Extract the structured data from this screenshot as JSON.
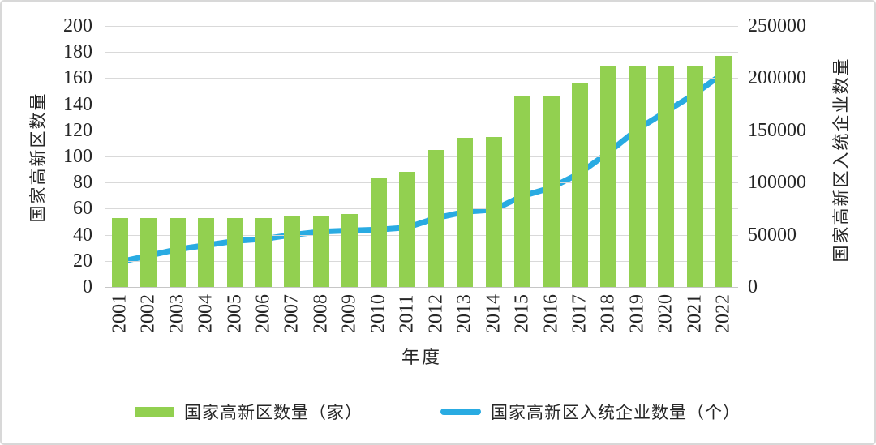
{
  "chart_data": {
    "type": "combo-bar-line",
    "categories": [
      "2001",
      "2002",
      "2003",
      "2004",
      "2005",
      "2006",
      "2007",
      "2008",
      "2009",
      "2010",
      "2011",
      "2012",
      "2013",
      "2014",
      "2015",
      "2016",
      "2017",
      "2018",
      "2019",
      "2020",
      "2021",
      "2022"
    ],
    "series": [
      {
        "name": "国家高新区数量（家）",
        "type": "bar",
        "axis": "left",
        "color": "#92d050",
        "values": [
          53,
          53,
          53,
          53,
          53,
          53,
          54,
          54,
          56,
          83,
          88,
          105,
          114,
          115,
          146,
          146,
          156,
          169,
          169,
          169,
          169,
          177
        ]
      },
      {
        "name": "国家高新区入统企业数量（个）",
        "type": "line",
        "axis": "right",
        "color": "#29abe2",
        "values": [
          24000,
          30000,
          36000,
          40000,
          44000,
          46000,
          50000,
          53000,
          54000,
          55000,
          57000,
          66000,
          72000,
          74000,
          87000,
          95000,
          109000,
          129000,
          151000,
          168000,
          185000,
          205000
        ]
      }
    ],
    "left_axis": {
      "title": "国家高新区数量",
      "min": 0,
      "max": 200,
      "step": 20,
      "tick_labels": [
        "0",
        "20",
        "40",
        "60",
        "80",
        "100",
        "120",
        "140",
        "160",
        "180",
        "200"
      ]
    },
    "right_axis": {
      "title": "国家高新区入统企业数量",
      "min": 0,
      "max": 250000,
      "step": 50000,
      "tick_labels": [
        "0",
        "50000",
        "100000",
        "150000",
        "200000",
        "250000"
      ]
    },
    "xlabel": "年度",
    "grid": true,
    "legend_position": "bottom",
    "colors": {
      "bar": "#92d050",
      "line": "#29abe2",
      "gridline": "#d9d9d9",
      "text": "#262626"
    }
  }
}
